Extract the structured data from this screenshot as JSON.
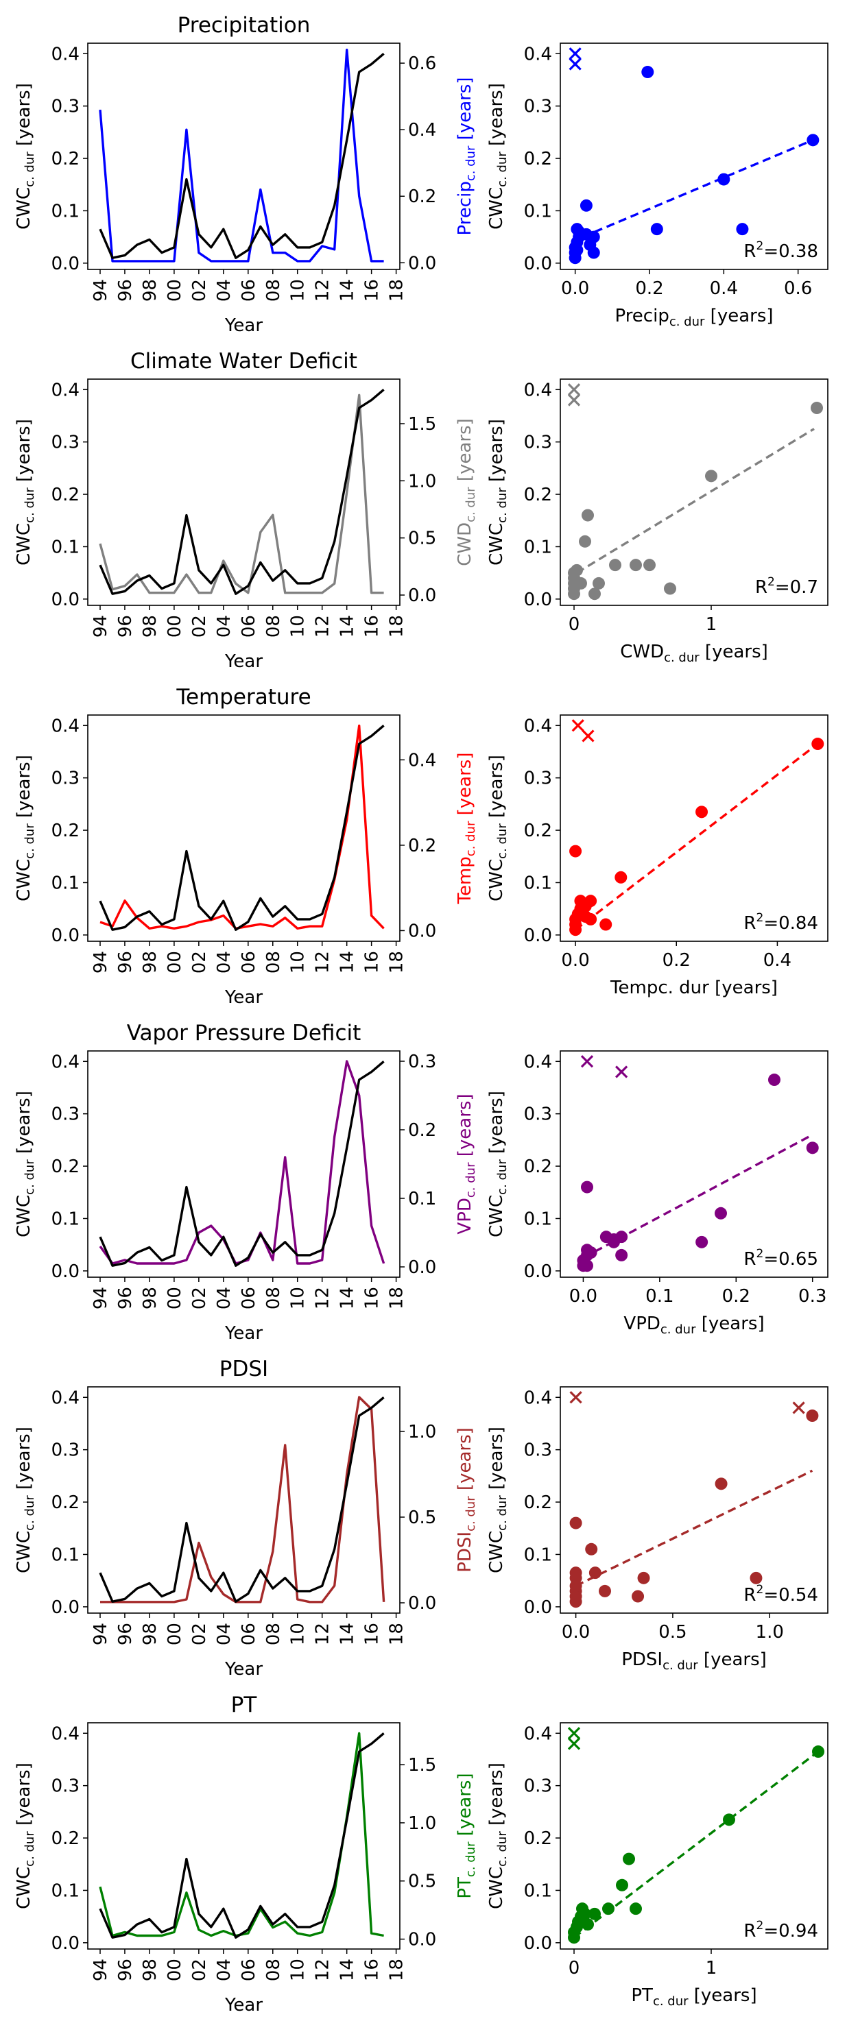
{
  "x_axis_label": "Year",
  "y_axis_label_left": "CWC",
  "y_axis_label_subscript": "c. dur",
  "y_axis_label_unit": "[years]",
  "x_tick_labels": [
    "94",
    "96",
    "98",
    "00",
    "02",
    "04",
    "06",
    "08",
    "10",
    "12",
    "14",
    "16",
    "18"
  ],
  "cwc_series": {
    "x": [
      1994,
      1995,
      1996,
      1997,
      1998,
      1999,
      2000,
      2001,
      2002,
      2003,
      2004,
      2005,
      2006,
      2007,
      2008,
      2009,
      2010,
      2011,
      2012,
      2013,
      2014,
      2015,
      2016,
      2017
    ],
    "values": [
      0.065,
      0.01,
      0.015,
      0.035,
      0.045,
      0.02,
      0.03,
      0.16,
      0.055,
      0.03,
      0.065,
      0.01,
      0.025,
      0.07,
      0.035,
      0.055,
      0.03,
      0.03,
      0.04,
      0.11,
      0.235,
      0.365,
      0.38,
      0.4
    ]
  },
  "chart_data": [
    {
      "type": "line",
      "title": "Precipitation",
      "color": "#0000ff",
      "right_label_prefix": "Precip",
      "right_ylim": [
        -0.02,
        0.66
      ],
      "right_ticks": [
        0.0,
        0.2,
        0.4,
        0.6
      ],
      "right_tick_labels": [
        "0.0",
        "0.2",
        "0.4",
        "0.6"
      ],
      "values": [
        0.46,
        0.005,
        0.005,
        0.005,
        0.005,
        0.005,
        0.005,
        0.4,
        0.03,
        0.005,
        0.005,
        0.005,
        0.005,
        0.22,
        0.03,
        0.03,
        0.005,
        0.005,
        0.05,
        0.04,
        0.64,
        0.2,
        0.005,
        0.005
      ]
    },
    {
      "type": "scatter",
      "color": "#0000ff",
      "xlabel_prefix": "Precip",
      "xlim": [
        -0.04,
        0.68
      ],
      "x_ticks": [
        0.0,
        0.2,
        0.4,
        0.6
      ],
      "x_tick_labels": [
        "0.0",
        "0.2",
        "0.4",
        "0.6"
      ],
      "r2_label": "R",
      "r2_value": "=0.38",
      "points": [
        [
          0.0,
          0.01
        ],
        [
          0.0,
          0.02
        ],
        [
          0.0,
          0.03
        ],
        [
          0.005,
          0.04
        ],
        [
          0.01,
          0.05
        ],
        [
          0.01,
          0.06
        ],
        [
          0.03,
          0.055
        ],
        [
          0.04,
          0.035
        ],
        [
          0.05,
          0.02
        ],
        [
          0.03,
          0.11
        ],
        [
          0.005,
          0.065
        ],
        [
          0.05,
          0.05
        ],
        [
          0.005,
          0.025
        ],
        [
          0.22,
          0.065
        ],
        [
          0.195,
          0.365
        ],
        [
          0.4,
          0.16
        ],
        [
          0.45,
          0.065
        ],
        [
          0.64,
          0.235
        ]
      ],
      "outliers": [
        [
          0.0,
          0.4
        ],
        [
          0.0,
          0.38
        ]
      ],
      "fit": [
        [
          0.02,
          0.05
        ],
        [
          0.64,
          0.235
        ]
      ]
    },
    {
      "type": "line",
      "title": "Climate Water Deficit",
      "color": "#808080",
      "right_label_prefix": "CWD",
      "right_ylim": [
        -0.09,
        1.89
      ],
      "right_ticks": [
        0.0,
        0.5,
        1.0,
        1.5
      ],
      "right_tick_labels": [
        "0.0",
        "0.5",
        "1.0",
        "1.5"
      ],
      "values": [
        0.45,
        0.05,
        0.08,
        0.18,
        0.02,
        0.02,
        0.02,
        0.18,
        0.02,
        0.02,
        0.3,
        0.1,
        0.02,
        0.55,
        0.7,
        0.02,
        0.02,
        0.02,
        0.02,
        0.1,
        0.9,
        1.75,
        0.02,
        0.02
      ]
    },
    {
      "type": "scatter",
      "color": "#808080",
      "xlabel_prefix": "CWD",
      "xlim": [
        -0.1,
        1.85
      ],
      "x_ticks": [
        0,
        1
      ],
      "x_tick_labels": [
        "0",
        "1"
      ],
      "r2_label": "R",
      "r2_value": "=0.7",
      "points": [
        [
          0.0,
          0.01
        ],
        [
          0.0,
          0.02
        ],
        [
          0.0,
          0.03
        ],
        [
          0.0,
          0.04
        ],
        [
          0.0,
          0.05
        ],
        [
          0.02,
          0.055
        ],
        [
          0.05,
          0.03
        ],
        [
          0.08,
          0.11
        ],
        [
          0.1,
          0.16
        ],
        [
          0.15,
          0.01
        ],
        [
          0.18,
          0.03
        ],
        [
          0.3,
          0.065
        ],
        [
          0.45,
          0.065
        ],
        [
          0.55,
          0.065
        ],
        [
          0.7,
          0.02
        ],
        [
          1.0,
          0.235
        ],
        [
          1.77,
          0.365
        ]
      ],
      "outliers": [
        [
          0.0,
          0.4
        ],
        [
          0.0,
          0.38
        ]
      ],
      "fit": [
        [
          0.02,
          0.05
        ],
        [
          1.75,
          0.325
        ]
      ]
    },
    {
      "type": "line",
      "title": "Temperature",
      "color": "#ff0000",
      "right_label_prefix": "Temp",
      "right_ylim": [
        -0.025,
        0.505
      ],
      "right_ticks": [
        0.0,
        0.2,
        0.4
      ],
      "right_tick_labels": [
        "0.0",
        "0.2",
        "0.4"
      ],
      "values": [
        0.02,
        0.01,
        0.07,
        0.03,
        0.005,
        0.01,
        0.005,
        0.01,
        0.02,
        0.025,
        0.035,
        0.005,
        0.01,
        0.015,
        0.01,
        0.03,
        0.005,
        0.01,
        0.01,
        0.12,
        0.26,
        0.48,
        0.035,
        0.005
      ]
    },
    {
      "type": "scatter",
      "color": "#ff0000",
      "xlabel_prefix": "Temp",
      "xlabel_sub_inline": "c. dur",
      "xlim": [
        -0.03,
        0.5
      ],
      "x_ticks": [
        0.0,
        0.2,
        0.4
      ],
      "x_tick_labels": [
        "0.0",
        "0.2",
        "0.4"
      ],
      "r2_label": "R",
      "r2_value": "=0.84",
      "points": [
        [
          0.0,
          0.01
        ],
        [
          0.0,
          0.02
        ],
        [
          0.0,
          0.03
        ],
        [
          0.005,
          0.04
        ],
        [
          0.01,
          0.05
        ],
        [
          0.01,
          0.065
        ],
        [
          0.02,
          0.055
        ],
        [
          0.02,
          0.035
        ],
        [
          0.03,
          0.03
        ],
        [
          0.0,
          0.16
        ],
        [
          0.03,
          0.065
        ],
        [
          0.06,
          0.02
        ],
        [
          0.09,
          0.11
        ],
        [
          0.25,
          0.235
        ],
        [
          0.48,
          0.365
        ]
      ],
      "outliers": [
        [
          0.005,
          0.4
        ],
        [
          0.025,
          0.38
        ]
      ],
      "fit": [
        [
          0.0,
          0.01
        ],
        [
          0.48,
          0.365
        ]
      ]
    },
    {
      "type": "line",
      "title": "Vapor Pressure Deficit",
      "color": "#800080",
      "right_label_prefix": "VPD",
      "right_ylim": [
        -0.015,
        0.315
      ],
      "right_ticks": [
        0.0,
        0.1,
        0.2,
        0.3
      ],
      "right_tick_labels": [
        "0.0",
        "0.1",
        "0.2",
        "0.3"
      ],
      "values": [
        0.03,
        0.005,
        0.01,
        0.005,
        0.005,
        0.005,
        0.005,
        0.01,
        0.05,
        0.06,
        0.04,
        0.005,
        0.01,
        0.05,
        0.01,
        0.16,
        0.005,
        0.005,
        0.01,
        0.19,
        0.3,
        0.25,
        0.06,
        0.005
      ]
    },
    {
      "type": "scatter",
      "color": "#800080",
      "xlabel_prefix": "VPD",
      "xlim": [
        -0.03,
        0.32
      ],
      "x_ticks": [
        0.0,
        0.1,
        0.2,
        0.3
      ],
      "x_tick_labels": [
        "0.0",
        "0.1",
        "0.2",
        "0.3"
      ],
      "r2_label": "R",
      "r2_value": "=0.65",
      "points": [
        [
          0.0,
          0.01
        ],
        [
          0.0,
          0.02
        ],
        [
          0.005,
          0.03
        ],
        [
          0.005,
          0.04
        ],
        [
          0.01,
          0.035
        ],
        [
          0.005,
          0.01
        ],
        [
          0.005,
          0.16
        ],
        [
          0.03,
          0.065
        ],
        [
          0.04,
          0.06
        ],
        [
          0.04,
          0.055
        ],
        [
          0.05,
          0.065
        ],
        [
          0.05,
          0.03
        ],
        [
          0.155,
          0.055
        ],
        [
          0.18,
          0.11
        ],
        [
          0.25,
          0.365
        ],
        [
          0.3,
          0.235
        ]
      ],
      "outliers": [
        [
          0.005,
          0.4
        ],
        [
          0.05,
          0.38
        ]
      ],
      "fit": [
        [
          0.0,
          0.025
        ],
        [
          0.3,
          0.26
        ]
      ]
    },
    {
      "type": "line",
      "title": "PDSI",
      "color": "#a52a2a",
      "right_label_prefix": "PDSI",
      "right_ylim": [
        -0.06,
        1.26
      ],
      "right_ticks": [
        0.0,
        0.5,
        1.0
      ],
      "right_tick_labels": [
        "0.0",
        "0.5",
        "1.0"
      ],
      "values": [
        0.005,
        0.005,
        0.005,
        0.005,
        0.005,
        0.005,
        0.005,
        0.02,
        0.35,
        0.15,
        0.05,
        0.005,
        0.005,
        0.005,
        0.3,
        0.92,
        0.02,
        0.005,
        0.005,
        0.1,
        0.75,
        1.2,
        1.13,
        0.005
      ]
    },
    {
      "type": "scatter",
      "color": "#a52a2a",
      "xlabel_prefix": "PDSI",
      "xlim": [
        -0.08,
        1.3
      ],
      "x_ticks": [
        0.0,
        0.5,
        1.0
      ],
      "x_tick_labels": [
        "0.0",
        "0.5",
        "1.0"
      ],
      "r2_label": "R",
      "r2_value": "=0.54",
      "points": [
        [
          0.0,
          0.01
        ],
        [
          0.0,
          0.02
        ],
        [
          0.0,
          0.03
        ],
        [
          0.0,
          0.04
        ],
        [
          0.0,
          0.065
        ],
        [
          0.0,
          0.16
        ],
        [
          0.0,
          0.055
        ],
        [
          0.08,
          0.11
        ],
        [
          0.1,
          0.065
        ],
        [
          0.15,
          0.03
        ],
        [
          0.32,
          0.02
        ],
        [
          0.35,
          0.055
        ],
        [
          0.75,
          0.235
        ],
        [
          0.93,
          0.055
        ],
        [
          1.22,
          0.365
        ]
      ],
      "outliers": [
        [
          0.0,
          0.4
        ],
        [
          1.15,
          0.38
        ]
      ],
      "fit": [
        [
          0.0,
          0.04
        ],
        [
          1.22,
          0.26
        ]
      ]
    },
    {
      "type": "line",
      "title": "PT",
      "color": "#008000",
      "right_label_prefix": "PT",
      "right_ylim": [
        -0.085,
        1.86
      ],
      "right_ticks": [
        0.0,
        0.5,
        1.0,
        1.5
      ],
      "right_tick_labels": [
        "0.0",
        "0.5",
        "1.0",
        "1.5"
      ],
      "values": [
        0.45,
        0.03,
        0.06,
        0.03,
        0.03,
        0.03,
        0.06,
        0.4,
        0.08,
        0.03,
        0.07,
        0.03,
        0.05,
        0.26,
        0.1,
        0.15,
        0.05,
        0.03,
        0.06,
        0.4,
        1.05,
        1.77,
        0.05,
        0.03
      ]
    },
    {
      "type": "scatter",
      "color": "#008000",
      "xlabel_prefix": "PT",
      "xlim": [
        -0.1,
        1.85
      ],
      "x_ticks": [
        0,
        1
      ],
      "x_tick_labels": [
        "0",
        "1"
      ],
      "r2_label": "R",
      "r2_value": "=0.94",
      "points": [
        [
          0.0,
          0.01
        ],
        [
          0.0,
          0.02
        ],
        [
          0.02,
          0.03
        ],
        [
          0.03,
          0.04
        ],
        [
          0.05,
          0.05
        ],
        [
          0.06,
          0.065
        ],
        [
          0.08,
          0.055
        ],
        [
          0.1,
          0.035
        ],
        [
          0.15,
          0.055
        ],
        [
          0.25,
          0.065
        ],
        [
          0.35,
          0.11
        ],
        [
          0.4,
          0.16
        ],
        [
          0.45,
          0.065
        ],
        [
          1.13,
          0.235
        ],
        [
          1.78,
          0.365
        ]
      ],
      "outliers": [
        [
          0.0,
          0.4
        ],
        [
          0.0,
          0.38
        ]
      ],
      "fit": [
        [
          0.0,
          0.01
        ],
        [
          1.78,
          0.365
        ]
      ]
    }
  ]
}
